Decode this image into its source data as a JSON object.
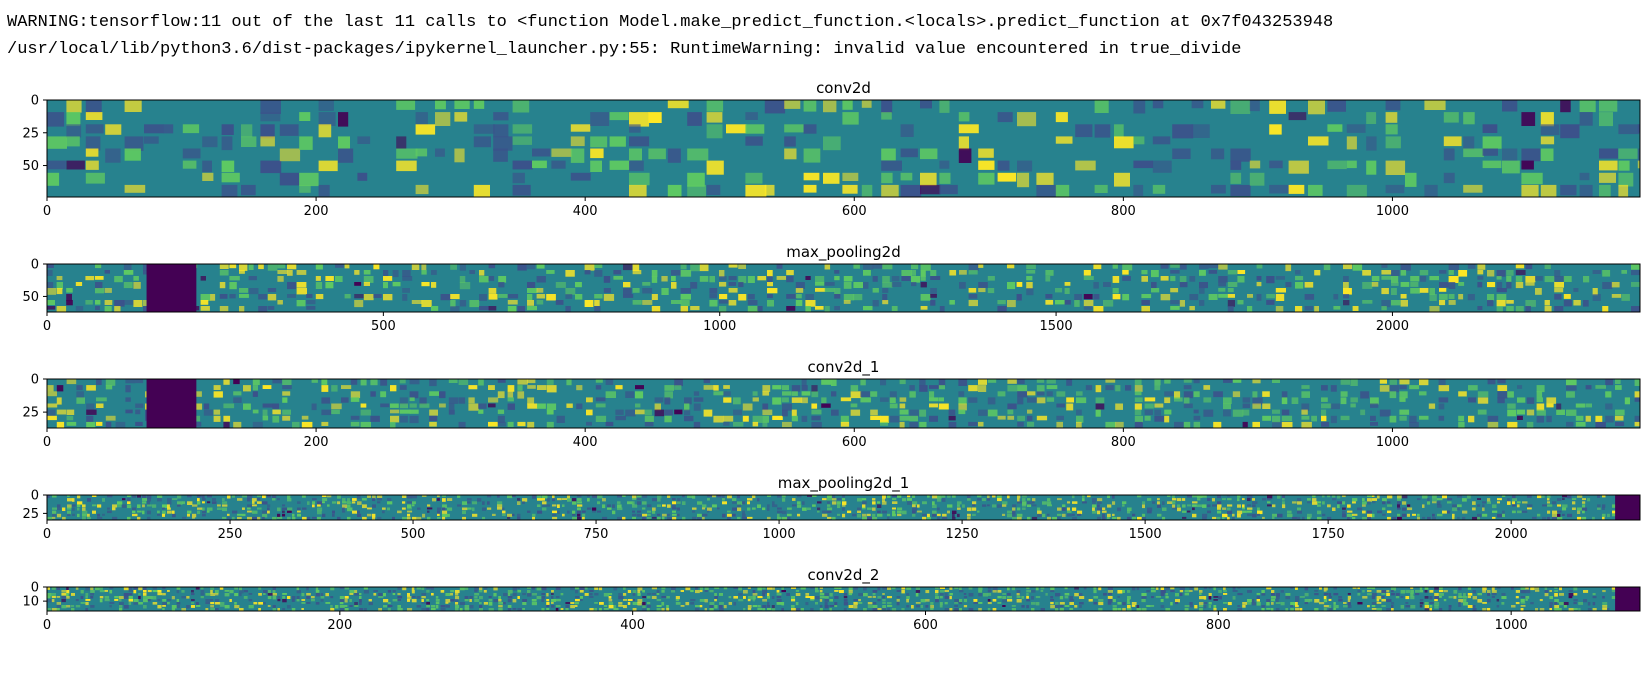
{
  "output": {
    "lines": [
      "WARNING:tensorflow:11 out of the last 11 calls to <function Model.make_predict_function.<locals>.predict_function at 0x7f043253948",
      "/usr/local/lib/python3.6/dist-packages/ipykernel_launcher.py:55: RuntimeWarning: invalid value encountered in true_divide"
    ]
  },
  "chart_data": [
    {
      "type": "heatmap",
      "title": "conv2d",
      "colormap": "viridis",
      "grid": false,
      "xlim": [
        0,
        1184
      ],
      "ylim": [
        74,
        0
      ],
      "xticks": [
        0,
        200,
        400,
        600,
        800,
        1000
      ],
      "yticks": [
        0,
        25,
        50
      ],
      "dark_columns": []
    },
    {
      "type": "heatmap",
      "title": "max_pooling2d",
      "colormap": "viridis",
      "grid": false,
      "xlim": [
        0,
        2368
      ],
      "ylim": [
        74,
        0
      ],
      "xticks": [
        0,
        500,
        1000,
        1500,
        2000
      ],
      "yticks": [
        0,
        50
      ],
      "dark_columns": [
        [
          148,
          222
        ]
      ]
    },
    {
      "type": "heatmap",
      "title": "conv2d_1",
      "colormap": "viridis",
      "grid": false,
      "xlim": [
        0,
        1184
      ],
      "ylim": [
        37,
        0
      ],
      "xticks": [
        0,
        200,
        400,
        600,
        800,
        1000
      ],
      "yticks": [
        0,
        25
      ],
      "dark_columns": [
        [
          74,
          111
        ]
      ]
    },
    {
      "type": "heatmap",
      "title": "max_pooling2d_1",
      "colormap": "viridis",
      "grid": false,
      "xlim": [
        0,
        2176
      ],
      "ylim": [
        34,
        0
      ],
      "xticks": [
        0,
        250,
        500,
        750,
        1000,
        1250,
        1500,
        1750,
        2000
      ],
      "yticks": [
        0,
        25
      ],
      "dark_columns": [
        [
          2142,
          2176
        ]
      ]
    },
    {
      "type": "heatmap",
      "title": "conv2d_2",
      "colormap": "viridis",
      "grid": false,
      "xlim": [
        0,
        1088
      ],
      "ylim": [
        17,
        0
      ],
      "xticks": [
        0,
        200,
        400,
        600,
        800,
        1000
      ],
      "yticks": [
        0,
        10
      ],
      "dark_columns": [
        [
          1071,
          1088
        ]
      ]
    }
  ]
}
